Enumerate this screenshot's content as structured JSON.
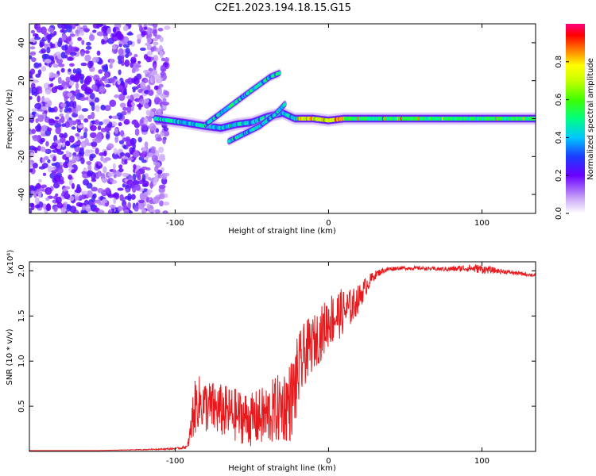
{
  "title": "C2E1.2023.194.18.15.G15",
  "chart_data": [
    {
      "type": "heatmap",
      "title": "C2E1.2023.194.18.15.G15",
      "xlabel": "Height of straight line (km)",
      "ylabel": "Frequency (Hz)",
      "xlim": [
        -195,
        135
      ],
      "ylim": [
        -50,
        50
      ],
      "xticks": [
        -100,
        0,
        100
      ],
      "yticks": [
        -40,
        -20,
        0,
        20,
        40
      ],
      "colorbar": {
        "label": "Normalized spectral amplitude",
        "range": [
          0,
          1
        ],
        "ticks": [
          "0.0",
          "0.2",
          "0.4",
          "0.6",
          "0.8"
        ],
        "tick_values": [
          0,
          0.2,
          0.4,
          0.6,
          0.8
        ]
      },
      "ridges": [
        {
          "name": "main-line",
          "points": [
            [
              -113,
              0
            ],
            [
              -95,
              -2
            ],
            [
              -80,
              -4
            ],
            [
              -70,
              -5
            ],
            [
              -60,
              -3
            ],
            [
              -50,
              -2
            ],
            [
              -40,
              1
            ],
            [
              -30,
              3
            ],
            [
              -22,
              0
            ],
            [
              -10,
              0
            ],
            [
              0,
              -1
            ],
            [
              10,
              0
            ],
            [
              50,
              0
            ],
            [
              100,
              0
            ],
            [
              135,
              0
            ]
          ],
          "amplitude": 0.95
        },
        {
          "name": "lower-branch",
          "points": [
            [
              -65,
              -12
            ],
            [
              -55,
              -8
            ],
            [
              -45,
              -4
            ],
            [
              -35,
              2
            ],
            [
              -28,
              8
            ]
          ],
          "amplitude": 0.6
        },
        {
          "name": "upper-branch",
          "points": [
            [
              -80,
              -3
            ],
            [
              -70,
              3
            ],
            [
              -60,
              9
            ],
            [
              -50,
              15
            ],
            [
              -38,
              22
            ],
            [
              -32,
              24
            ]
          ],
          "amplitude": 0.4
        }
      ],
      "noise_region": {
        "x_range": [
          -195,
          -105
        ],
        "y_range": [
          -50,
          50
        ]
      }
    },
    {
      "type": "line",
      "xlabel": "Height of straight line (km)",
      "ylabel": "SNR (10 * v/v)",
      "yscale_label": "(x10⁴)",
      "xlim": [
        -195,
        135
      ],
      "ylim": [
        0,
        2.1
      ],
      "xticks": [
        -100,
        0,
        100
      ],
      "yticks": [
        "0.5",
        "1.0",
        "1.5",
        "2.0"
      ],
      "ytick_values": [
        0.5,
        1.0,
        1.5,
        2.0
      ],
      "color": "#e8191c",
      "series": [
        {
          "name": "SNR",
          "x": [
            -195,
            -150,
            -120,
            -100,
            -92,
            -90,
            -88,
            -85,
            -80,
            -70,
            -60,
            -50,
            -40,
            -30,
            -25,
            -22,
            -20,
            -15,
            -10,
            -5,
            0,
            5,
            10,
            15,
            20,
            25,
            30,
            35,
            40,
            45,
            50,
            60,
            70,
            80,
            90,
            100,
            110,
            120,
            135
          ],
          "y": [
            0.01,
            0.01,
            0.02,
            0.03,
            0.05,
            0.2,
            0.45,
            0.55,
            0.5,
            0.45,
            0.4,
            0.35,
            0.4,
            0.5,
            0.55,
            0.7,
            0.85,
            1.1,
            1.2,
            1.3,
            1.45,
            1.5,
            1.55,
            1.6,
            1.7,
            1.85,
            1.95,
            2.0,
            2.02,
            2.03,
            2.03,
            2.03,
            2.02,
            2.02,
            2.03,
            2.02,
            2.0,
            1.98,
            1.95
          ],
          "noise": [
            0,
            0,
            0.005,
            0.01,
            0.02,
            0.15,
            0.3,
            0.3,
            0.3,
            0.3,
            0.3,
            0.3,
            0.35,
            0.4,
            0.45,
            0.45,
            0.45,
            0.35,
            0.3,
            0.3,
            0.3,
            0.3,
            0.25,
            0.2,
            0.15,
            0.1,
            0.05,
            0.03,
            0.03,
            0.02,
            0.02,
            0.02,
            0.02,
            0.03,
            0.04,
            0.05,
            0.03,
            0.02,
            0.02
          ]
        }
      ]
    }
  ]
}
